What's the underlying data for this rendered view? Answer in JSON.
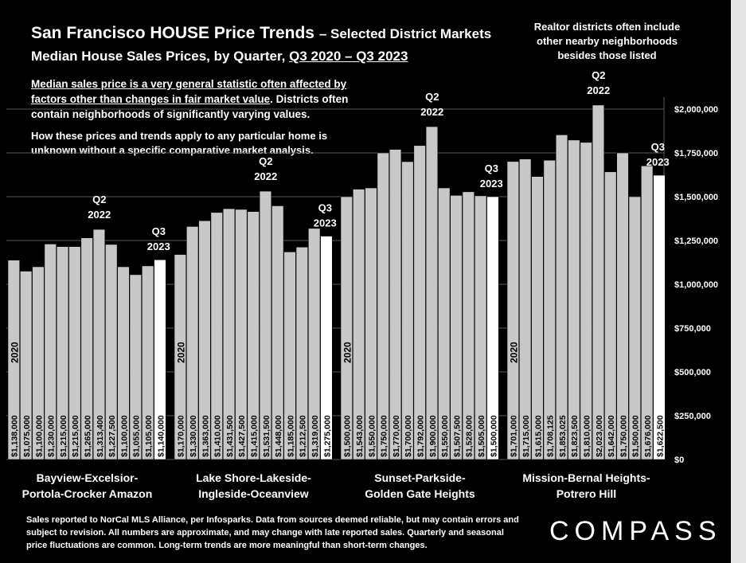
{
  "header": {
    "title": "San Francisco HOUSE Price Trends",
    "title_suffix": "– Selected District Markets",
    "subtitle_prefix": "Median House Sales Prices, by Quarter,",
    "subtitle_range": "Q3 2020 – Q3 2023"
  },
  "notes": {
    "right": "Realtor districts often include other nearby neighborhoods besides those listed",
    "box_underlined": "Median sales price is a very general statistic often affected by factors other than changes in fair market value",
    "box_rest": ". Districts often contain neighborhoods of significantly varying values.",
    "box2": "How these prices and trends apply to any particular home is unknown without a specific comparative market analysis."
  },
  "footer": {
    "text": "Sales reported to NorCal MLS Alliance, per Infosparks. Data from sources deemed reliable, but may contain errors and subject to revision. All numbers are approximate, and may change with late reported sales. Quarterly and seasonal price fluctuations are common. Long-term trends are more meaningful than short-term changes.",
    "logo": "COMPASS"
  },
  "colors": {
    "bar": "#c8c8c8",
    "bar_latest": "#ffffff",
    "grid": "#5a5a5a",
    "background": "#000000"
  },
  "chart_data": {
    "type": "bar",
    "ylim": [
      0,
      2000000
    ],
    "yticks": [
      "$0",
      "$250,000",
      "$500,000",
      "$750,000",
      "$1,000,000",
      "$1,250,000",
      "$1,500,000",
      "$1,750,000",
      "$2,000,000"
    ],
    "ytick_values": [
      0,
      250000,
      500000,
      750000,
      1000000,
      1250000,
      1500000,
      1750000,
      2000000
    ],
    "grid": true,
    "year_label": "2020",
    "peak_label": [
      "Q2",
      "2022"
    ],
    "end_label": [
      "Q3",
      "2023"
    ],
    "groups": [
      {
        "name": [
          "Bayview-Excelsior-",
          "Portola-Crocker Amazon"
        ],
        "values": [
          1138000,
          1075000,
          1100000,
          1230000,
          1215000,
          1215000,
          1265000,
          1313400,
          1227500,
          1100000,
          1055000,
          1105000,
          1140000
        ],
        "labels": [
          "$1,138,000",
          "$1,075,000",
          "$1,100,000",
          "$1,230,000",
          "$1,215,000",
          "$1,215,000",
          "$1,265,000",
          "$1,313,400",
          "$1,227,500",
          "$1,100,000",
          "$1,055,000",
          "$1,105,000",
          "$1,140,000"
        ]
      },
      {
        "name": [
          "Lake Shore-Lakeside-",
          "Ingleside-Oceanview"
        ],
        "values": [
          1170000,
          1330000,
          1363000,
          1410000,
          1431500,
          1427500,
          1415000,
          1531500,
          1448000,
          1185000,
          1212500,
          1319000,
          1275000
        ],
        "labels": [
          "$1,170,000",
          "$1,330,000",
          "$1,363,000",
          "$1,410,000",
          "$1,431,500",
          "$1,427,500",
          "$1,415,000",
          "$1,531,500",
          "$1,448,000",
          "$1,185,000",
          "$1,212,500",
          "$1,319,000",
          "$1,275,000"
        ]
      },
      {
        "name": [
          "Sunset-Parkside-",
          "Golden Gate Heights"
        ],
        "values": [
          1500000,
          1543000,
          1550000,
          1750000,
          1770000,
          1700000,
          1792000,
          1900000,
          1550000,
          1507500,
          1528000,
          1505000,
          1500000
        ],
        "labels": [
          "$1,500,000",
          "$1,543,000",
          "$1,550,000",
          "$1,750,000",
          "$1,770,000",
          "$1,700,000",
          "$1,792,000",
          "$1,900,000",
          "$1,550,000",
          "$1,507,500",
          "$1,528,000",
          "$1,505,000",
          "$1,500,000"
        ]
      },
      {
        "name": [
          "Mission-Bernal Heights-",
          "Potrero Hill"
        ],
        "values": [
          1701000,
          1715000,
          1615000,
          1708125,
          1853025,
          1823500,
          1810000,
          2023000,
          1642000,
          1750000,
          1500000,
          1676000,
          1622500
        ],
        "labels": [
          "$1,701,000",
          "$1,715,000",
          "$1,615,000",
          "$1,708,125",
          "$1,853,025",
          "$1,823,500",
          "$1,810,000",
          "$2,023,000",
          "$1,642,000",
          "$1,750,000",
          "$1,500,000",
          "$1,676,000",
          "$1,622,500"
        ]
      }
    ]
  }
}
